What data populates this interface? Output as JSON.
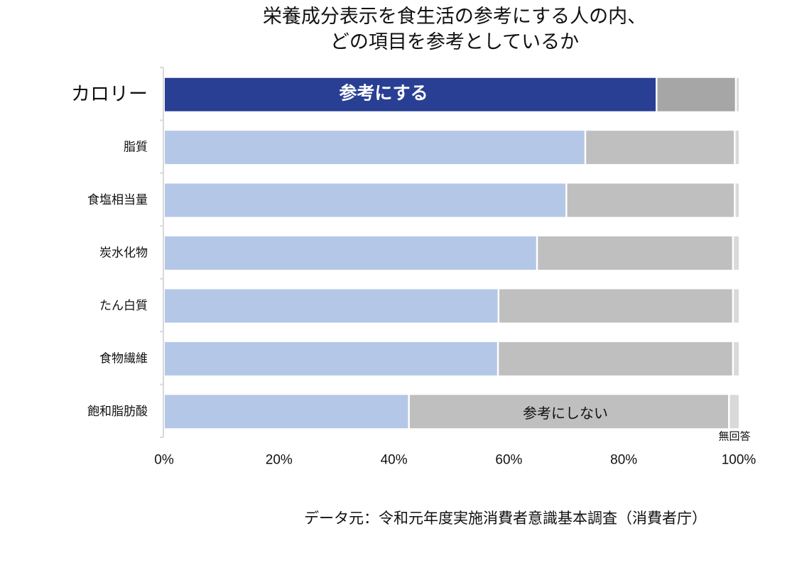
{
  "title": {
    "line1": "栄養成分表示を食生活の参考にする人の内、",
    "line2": "どの項目を参考としているか"
  },
  "source": "データ元：令和元年度実施消費者意識基本調査（消費者庁）",
  "colors": {
    "highlight_refer": "#283F93",
    "highlight_not": "#A6A6A6",
    "refer": "#B4C7E7",
    "not_refer": "#BFBFBF",
    "no_answer": "#D9D9D9",
    "axis": "#D9D9D9"
  },
  "chart_data": {
    "type": "bar",
    "orientation": "horizontal",
    "stacked": "percent",
    "title": "栄養成分表示を食生活の参考にする人の内、どの項目を参考としているか",
    "xlabel": "",
    "ylabel": "",
    "xlim": [
      0,
      100
    ],
    "x_ticks": [
      "0%",
      "20%",
      "40%",
      "60%",
      "80%",
      "100%"
    ],
    "x_tick_values": [
      0,
      20,
      40,
      60,
      80,
      100
    ],
    "grid": false,
    "categories": [
      "カロリー",
      "脂質",
      "食塩相当量",
      "炭水化物",
      "たん白質",
      "食物繊維",
      "飽和脂肪酸"
    ],
    "highlighted_category": "カロリー",
    "series": [
      {
        "name": "参考にする",
        "values": [
          85.7,
          73.3,
          70.0,
          64.9,
          58.2,
          58.1,
          42.6
        ]
      },
      {
        "name": "参考にしない",
        "values": [
          13.8,
          26.0,
          29.3,
          34.1,
          40.8,
          40.9,
          55.7
        ]
      },
      {
        "name": "無回答",
        "values": [
          0.5,
          0.7,
          0.7,
          1.0,
          1.0,
          1.0,
          1.7
        ]
      }
    ],
    "annotations": [
      {
        "text": "参考にする",
        "category": "カロリー",
        "series": "参考にする"
      },
      {
        "text": "参考にしない",
        "category": "飽和脂肪酸",
        "series": "参考にしない"
      },
      {
        "text": "無回答",
        "category": "飽和脂肪酸",
        "series": "無回答",
        "position": "below"
      }
    ],
    "legend": "none (inline annotations)"
  }
}
